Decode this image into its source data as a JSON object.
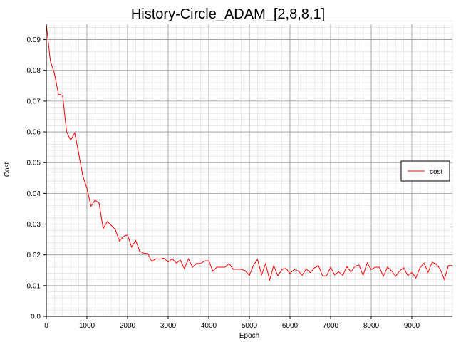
{
  "chart_data": {
    "type": "line",
    "title": "History-Circle_ADAM_[2,8,8,1]",
    "xlabel": "Epoch",
    "ylabel": "Cost",
    "xlim": [
      0,
      10000
    ],
    "ylim": [
      0,
      0.095
    ],
    "x_ticks": [
      0,
      1000,
      2000,
      3000,
      4000,
      5000,
      6000,
      7000,
      8000,
      9000
    ],
    "x_tick_labels": [
      "0",
      "1000",
      "2000",
      "3000",
      "4000",
      "5000",
      "6000",
      "7000",
      "8000",
      "9000"
    ],
    "y_ticks": [
      0.0,
      0.01,
      0.02,
      0.03,
      0.04,
      0.05,
      0.06,
      0.07,
      0.08,
      0.09
    ],
    "y_tick_labels": [
      "0.0",
      "0.01",
      "0.02",
      "0.03",
      "0.04",
      "0.05",
      "0.06",
      "0.07",
      "0.08",
      "0.09"
    ],
    "grid": true,
    "legend_position": "right",
    "series": [
      {
        "name": "cost",
        "color": "#ff0000",
        "x": [
          0,
          100,
          200,
          300,
          400,
          500,
          600,
          700,
          800,
          900,
          1000,
          1100,
          1200,
          1300,
          1400,
          1500,
          1600,
          1700,
          1800,
          1900,
          2000,
          2100,
          2200,
          2300,
          2400,
          2500,
          2600,
          2700,
          2800,
          2900,
          3000,
          3100,
          3200,
          3300,
          3400,
          3500,
          3600,
          3700,
          3800,
          3900,
          4000,
          4100,
          4200,
          4300,
          4400,
          4500,
          4600,
          4700,
          4800,
          4900,
          5000,
          5100,
          5200,
          5300,
          5400,
          5500,
          5600,
          5700,
          5800,
          5900,
          6000,
          6100,
          6200,
          6300,
          6400,
          6500,
          6600,
          6700,
          6800,
          6900,
          7000,
          7100,
          7200,
          7300,
          7400,
          7500,
          7600,
          7700,
          7800,
          7900,
          8000,
          8100,
          8200,
          8300,
          8400,
          8500,
          8600,
          8700,
          8800,
          8900,
          9000,
          9100,
          9200,
          9300,
          9400,
          9500,
          9600,
          9700,
          9800,
          9900,
          10000
        ],
        "y": [
          0.095,
          0.083,
          0.079,
          0.0722,
          0.0719,
          0.06,
          0.0573,
          0.0597,
          0.0528,
          0.0456,
          0.0417,
          0.0358,
          0.0378,
          0.0368,
          0.0285,
          0.0308,
          0.0296,
          0.0282,
          0.0245,
          0.026,
          0.0265,
          0.0225,
          0.0247,
          0.0212,
          0.0205,
          0.0204,
          0.0178,
          0.0187,
          0.0186,
          0.0189,
          0.0177,
          0.0187,
          0.0173,
          0.0183,
          0.0155,
          0.0187,
          0.016,
          0.0172,
          0.0172,
          0.018,
          0.0181,
          0.0147,
          0.016,
          0.016,
          0.016,
          0.0172,
          0.0153,
          0.0153,
          0.0153,
          0.0148,
          0.0133,
          0.0166,
          0.0185,
          0.0135,
          0.0171,
          0.0118,
          0.0165,
          0.0132,
          0.0152,
          0.0156,
          0.0139,
          0.0152,
          0.0148,
          0.0134,
          0.0154,
          0.0142,
          0.0157,
          0.0165,
          0.0132,
          0.0131,
          0.016,
          0.0135,
          0.0145,
          0.0133,
          0.0162,
          0.0144,
          0.0163,
          0.0167,
          0.0133,
          0.0174,
          0.0152,
          0.016,
          0.016,
          0.013,
          0.016,
          0.0148,
          0.013,
          0.0148,
          0.0158,
          0.0133,
          0.0143,
          0.0125,
          0.0158,
          0.0173,
          0.0143,
          0.0176,
          0.017,
          0.0153,
          0.012,
          0.0165,
          0.0165
        ]
      }
    ]
  }
}
